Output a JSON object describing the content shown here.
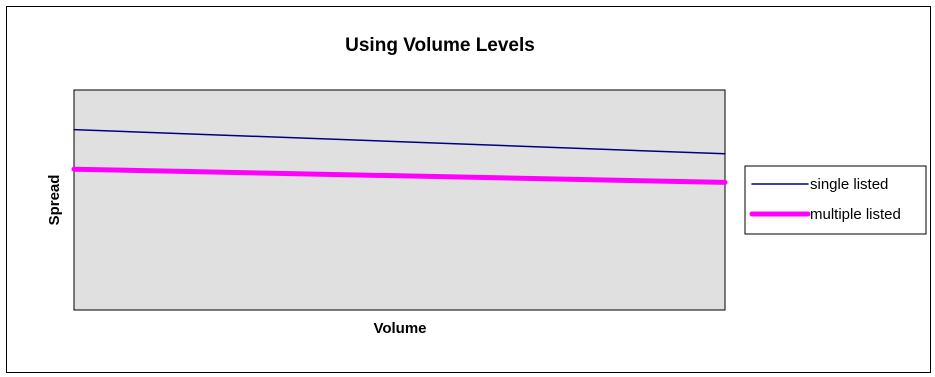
{
  "chart_data": {
    "type": "line",
    "title": "Using Volume Levels",
    "xlabel": "Volume",
    "ylabel": "Spread",
    "x": [
      0,
      1
    ],
    "ylim": [
      0,
      1
    ],
    "grid": false,
    "legend_position": "right",
    "plot_background": "#e0e0e0",
    "series": [
      {
        "name": "single listed",
        "color": "#000080",
        "values": [
          0.82,
          0.71
        ]
      },
      {
        "name": "multiple listed",
        "color": "#ff00ff",
        "values": [
          0.64,
          0.58
        ]
      }
    ]
  }
}
